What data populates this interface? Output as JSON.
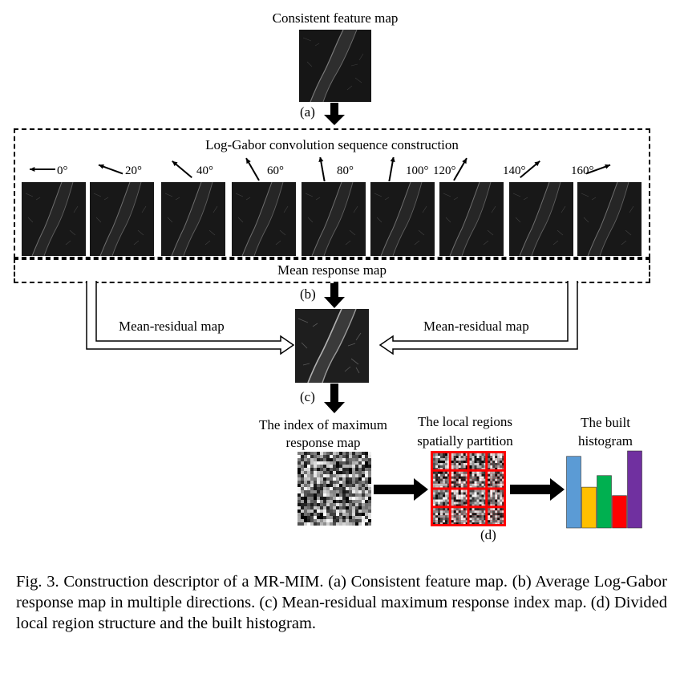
{
  "title": "Consistent feature map",
  "labels": {
    "a": "(a)",
    "b": "(b)",
    "c": "(c)",
    "d": "(d)"
  },
  "sequence_title": "Log-Gabor convolution sequence construction",
  "angles": [
    "0°",
    "20°",
    "40°",
    "60°",
    "80°",
    "100°",
    "120°",
    "140°",
    "160°"
  ],
  "mean_response": "Mean response  map",
  "mean_residual_left": "Mean-residual map",
  "mean_residual_right": "Mean-residual map",
  "index_map_label_line1": "The index of maximum",
  "index_map_label_line2": "response map",
  "local_regions_line1": "The local regions",
  "local_regions_line2": "spatially partition",
  "histogram_line1": "The built",
  "histogram_line2": "histogram",
  "histogram": {
    "colors": [
      "#5b9bd5",
      "#ffc000",
      "#00b050",
      "#ff0000",
      "#7030a0"
    ],
    "values": [
      0.93,
      0.53,
      0.68,
      0.42,
      1.0
    ]
  },
  "caption": "Fig. 3.   Construction descriptor of a MR-MIM. (a) Consistent feature map. (b) Average Log-Gabor response map in multiple directions. (c) Mean-residual maximum response index map. (d) Divided local region structure and the built histogram."
}
